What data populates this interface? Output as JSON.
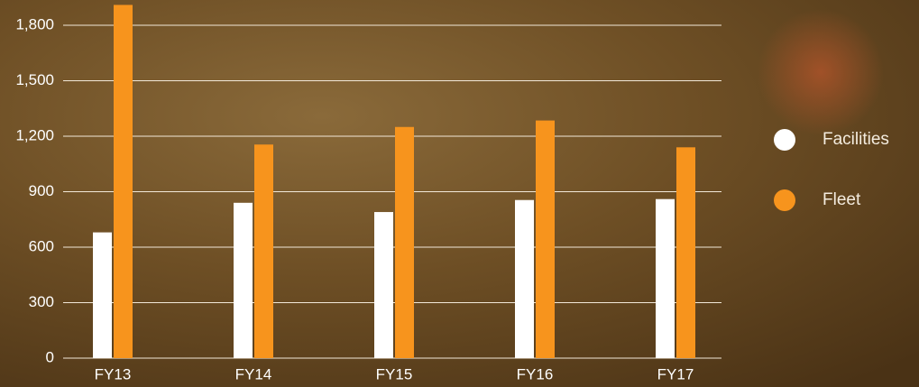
{
  "chart_data": {
    "type": "bar",
    "categories": [
      "FY13",
      "FY14",
      "FY15",
      "FY16",
      "FY17"
    ],
    "series": [
      {
        "name": "Facilities",
        "color": "#ffffff",
        "values": [
          680,
          840,
          790,
          855,
          860
        ]
      },
      {
        "name": "Fleet",
        "color": "#f7941d",
        "values": [
          1910,
          1155,
          1250,
          1285,
          1140
        ]
      }
    ],
    "ylim": [
      0,
      2000
    ],
    "yticks": [
      0,
      300,
      600,
      900,
      {
        "value": 1200,
        "label": "1,200"
      },
      {
        "value": 1500,
        "label": "1,500"
      },
      {
        "value": 1800,
        "label": "1,800"
      }
    ],
    "grid": true,
    "legend": "right"
  }
}
